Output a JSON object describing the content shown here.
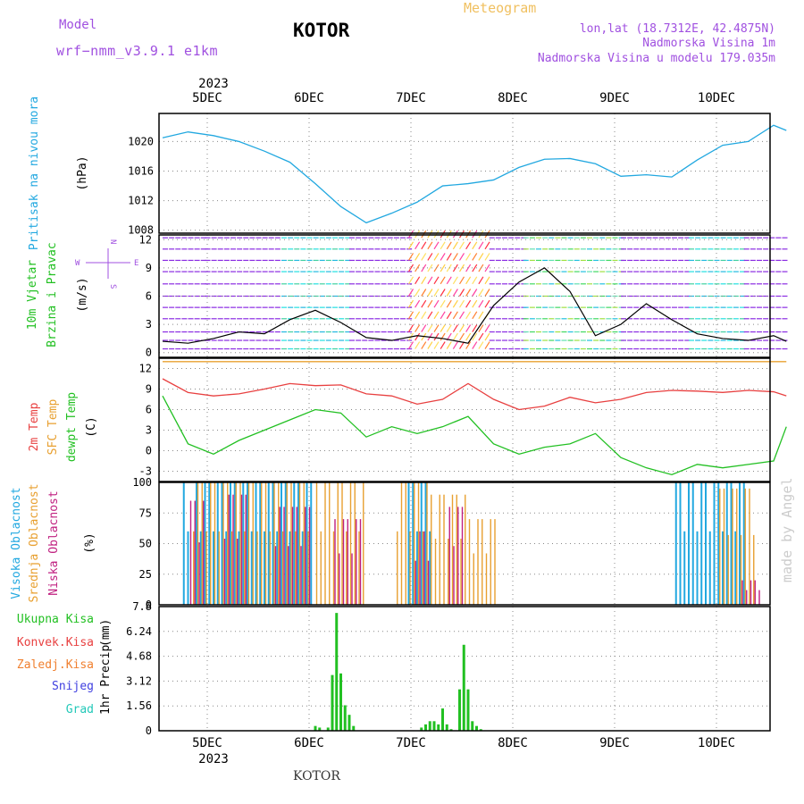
{
  "header": {
    "model_label": "Model",
    "model_version": "wrf−nmm_v3.9.1  e1km",
    "location_name": "KOTOR",
    "chart_kind": "Meteogram",
    "lonlat": "lon,lat (18.7312E, 42.4875N)",
    "altitude": "Nadmorska Visina 1m",
    "model_altitude": "Nadmorska Visina u modelu 179.035m",
    "footer_location": "KOTOR",
    "watermark": "made by Angel"
  },
  "colors": {
    "pressure": "#22a8e0",
    "temp2m": "#e84040",
    "sfc_temp": "#e8a030",
    "dewpoint": "#22c022",
    "high_cloud": "#22a8e0",
    "mid_cloud": "#e8a030",
    "low_cloud": "#c02080",
    "precip": "#22c022",
    "purple_labels": "#a050e0"
  },
  "chart_data": [
    {
      "type": "line",
      "panel": "pressure",
      "x_tick_labels": [
        "5DEC",
        "6DEC",
        "7DEC",
        "8DEC",
        "9DEC",
        "10DEC"
      ],
      "year_label": "2023",
      "ylabel": "Pritisak na nivou mora",
      "unit_label": "(hPa)",
      "y_ticks": [
        "1008",
        "1012",
        "1016",
        "1020"
      ],
      "ylim": [
        1007.6,
        1023.8
      ],
      "grid": true,
      "x_hours": [
        0,
        6,
        12,
        18,
        24,
        30,
        36,
        42,
        48,
        54,
        60,
        66,
        72,
        78,
        84,
        90,
        96,
        102,
        108,
        114,
        120,
        126,
        132,
        138,
        144,
        147
      ],
      "values": [
        1020.5,
        1021.3,
        1020.8,
        1020.0,
        1018.7,
        1017.2,
        1014.3,
        1011.2,
        1009.0,
        1010.3,
        1011.8,
        1014.0,
        1014.3,
        1014.8,
        1016.5,
        1017.6,
        1017.7,
        1017.0,
        1015.3,
        1015.5,
        1015.2,
        1017.5,
        1019.5,
        1020.0,
        1022.2,
        1021.5
      ]
    },
    {
      "type": "line",
      "panel": "wind",
      "ylabel": "10m Vjetar",
      "ylabel2": "Brzina i Pravac",
      "unit_label": "(m/s)",
      "compass": "N W E S",
      "y_ticks": [
        "0",
        "3",
        "6",
        "9",
        "12"
      ],
      "ylim": [
        -0.5,
        12.5
      ],
      "grid": true,
      "x_hours": [
        0,
        6,
        12,
        18,
        24,
        30,
        36,
        42,
        48,
        54,
        60,
        66,
        72,
        78,
        84,
        90,
        96,
        102,
        108,
        114,
        120,
        126,
        132,
        138,
        144,
        147
      ],
      "values": [
        1.2,
        1.0,
        1.5,
        2.2,
        2.0,
        3.5,
        4.5,
        3.2,
        1.6,
        1.3,
        1.8,
        1.5,
        1.0,
        5.0,
        7.5,
        9.0,
        6.5,
        1.8,
        3.0,
        5.2,
        3.5,
        2.0,
        1.5,
        1.3,
        1.8,
        1.2
      ]
    },
    {
      "type": "line",
      "panel": "temperature",
      "ylabel": "2m Temp",
      "ylabel2": "SFC Temp",
      "ylabel3": "dewpt Temp",
      "unit_label": "(C)",
      "y_ticks": [
        "-3",
        "0",
        "3",
        "6",
        "9",
        "12"
      ],
      "ylim": [
        -4.5,
        13.5
      ],
      "grid": true,
      "x_hours": [
        0,
        6,
        12,
        18,
        24,
        30,
        36,
        42,
        48,
        54,
        60,
        66,
        72,
        78,
        84,
        90,
        96,
        102,
        108,
        114,
        120,
        126,
        132,
        138,
        144,
        147
      ],
      "series": [
        {
          "name": "2m Temp",
          "values": [
            10.5,
            8.5,
            8.0,
            8.3,
            9.0,
            9.8,
            9.5,
            9.6,
            8.3,
            8.0,
            6.8,
            7.5,
            9.8,
            7.5,
            6.0,
            6.5,
            7.8,
            7.0,
            7.5,
            8.5,
            8.8,
            8.7,
            8.5,
            8.8,
            8.6,
            8.0
          ]
        },
        {
          "name": "SFC Temp",
          "values": [
            13.0,
            13.0,
            13.0,
            13.0,
            13.0,
            13.0,
            13.0,
            13.0,
            13.0,
            13.0,
            13.0,
            13.0,
            13.0,
            13.0,
            13.0,
            13.0,
            13.0,
            13.0,
            13.0,
            13.0,
            13.0,
            13.0,
            13.0,
            13.0,
            13.0,
            13.0
          ]
        },
        {
          "name": "dewpt Temp",
          "values": [
            8.0,
            1.0,
            -0.5,
            1.5,
            3.0,
            4.5,
            6.0,
            5.5,
            2.0,
            3.5,
            2.5,
            3.5,
            5.0,
            1.0,
            -0.5,
            0.5,
            1.0,
            2.5,
            -1.0,
            -2.5,
            -3.5,
            -2.0,
            -2.5,
            -2.0,
            -1.5,
            3.5
          ]
        }
      ]
    },
    {
      "type": "bar",
      "panel": "cloud",
      "ylabel": "Visoka Oblacnost",
      "ylabel2": "Srednja Oblacnost",
      "ylabel3": "Niska Oblacnost",
      "unit_label": "(%)",
      "y_ticks": [
        "0",
        "25",
        "50",
        "75",
        "100"
      ],
      "ylim": [
        0,
        100
      ],
      "grid": true,
      "series": [
        {
          "name": "Visoka Oblacnost",
          "ranges_hours": [
            [
              5,
              6,
              100
            ],
            [
              8,
              35,
              100
            ],
            [
              58,
              63,
              100
            ],
            [
              121,
              137,
              100
            ]
          ]
        },
        {
          "name": "Srednja Oblacnost",
          "ranges_hours": [
            [
              7,
              34,
              100
            ],
            [
              36,
              47,
              100
            ],
            [
              55,
              62,
              100
            ],
            [
              63,
              71,
              90
            ],
            [
              72,
              78,
              70
            ],
            [
              131,
              139,
              95
            ]
          ]
        },
        {
          "name": "Niska Oblacnost",
          "ranges_hours": [
            [
              6,
              9,
              85
            ],
            [
              14,
              19,
              90
            ],
            [
              26,
              34,
              80
            ],
            [
              40,
              46,
              70
            ],
            [
              59,
              62,
              60
            ],
            [
              67,
              70,
              80
            ],
            [
              136,
              140,
              20
            ]
          ]
        }
      ]
    },
    {
      "type": "bar",
      "panel": "precip",
      "ylabel": "1hr Precip",
      "unit_label": "(mm)",
      "legend": [
        "Ukupna  Kisa",
        "Konvek.Kisa",
        "Zaledj.Kisa",
        "Snijeg",
        "Grad"
      ],
      "y_ticks": [
        "0",
        "1.56",
        "3.12",
        "4.68",
        "6.24",
        "7.8"
      ],
      "ylim": [
        0,
        7.8
      ],
      "grid": true,
      "x_tick_labels": [
        "5DEC",
        "6DEC",
        "7DEC",
        "8DEC",
        "9DEC",
        "10DEC"
      ],
      "year_label": "2023",
      "x_hours": [
        36,
        37,
        39,
        40,
        41,
        42,
        43,
        44,
        45,
        47,
        61,
        62,
        63,
        64,
        65,
        66,
        67,
        68,
        70,
        71,
        72,
        73,
        74,
        75
      ],
      "values": [
        0.3,
        0.2,
        0.2,
        3.5,
        7.4,
        3.6,
        1.6,
        1.0,
        0.3,
        0.0,
        0.2,
        0.4,
        0.6,
        0.6,
        0.4,
        1.4,
        0.4,
        0.1,
        2.6,
        5.4,
        2.6,
        0.6,
        0.3,
        0.1
      ]
    }
  ]
}
